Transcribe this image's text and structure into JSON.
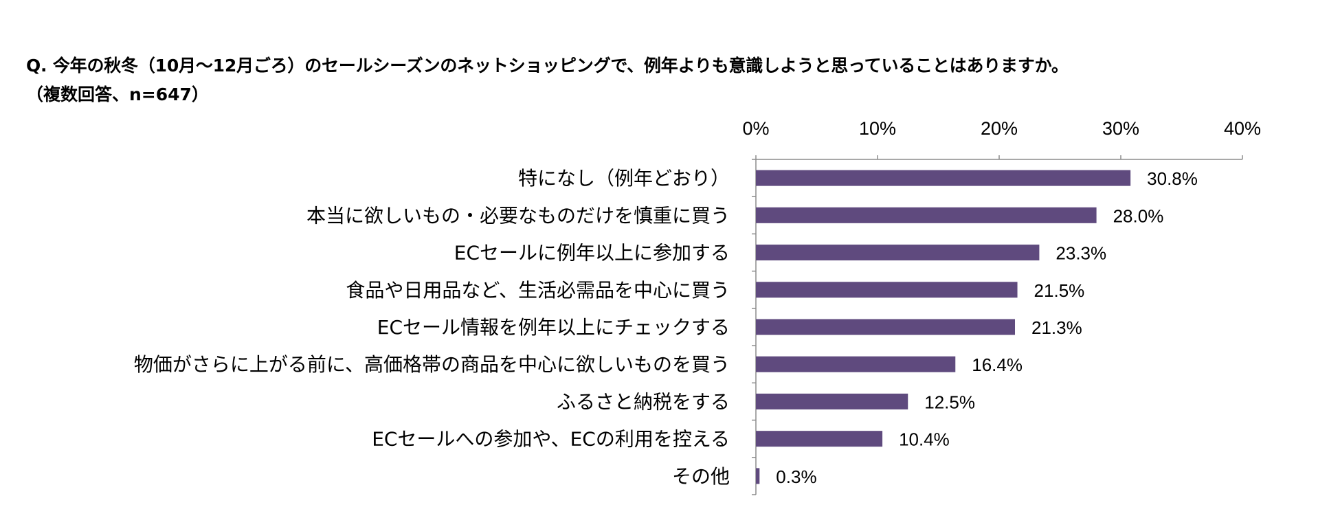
{
  "chart_data": {
    "type": "bar",
    "orientation": "horizontal",
    "title": "Q. 今年の秋冬（10月～12月ごろ）のセールシーズンのネットショッピングで、例年よりも意識しようと思っていることはありますか。",
    "subtitle": "（複数回答、n=647）",
    "categories": [
      "特になし（例年どおり）",
      "本当に欲しいもの・必要なものだけを慎重に買う",
      "ECセールに例年以上に参加する",
      "食品や日用品など、生活必需品を中心に買う",
      "ECセール情報を例年以上にチェックする",
      "物価がさらに上がる前に、高価格帯の商品を中心に欲しいものを買う",
      "ふるさと納税をする",
      "ECセールへの参加や、ECの利用を控える",
      "その他"
    ],
    "values": [
      30.8,
      28.0,
      23.3,
      21.5,
      21.3,
      16.4,
      12.5,
      10.4,
      0.3
    ],
    "data_labels": [
      "30.8%",
      "28.0%",
      "23.3%",
      "21.5%",
      "21.3%",
      "16.4%",
      "12.5%",
      "10.4%",
      "0.3%"
    ],
    "xlim": [
      0,
      40
    ],
    "x_ticks": [
      "0%",
      "10%",
      "20%",
      "30%",
      "40%"
    ],
    "x_axis_position": "top",
    "grid": false,
    "bar_color": "#5f4a7e"
  }
}
